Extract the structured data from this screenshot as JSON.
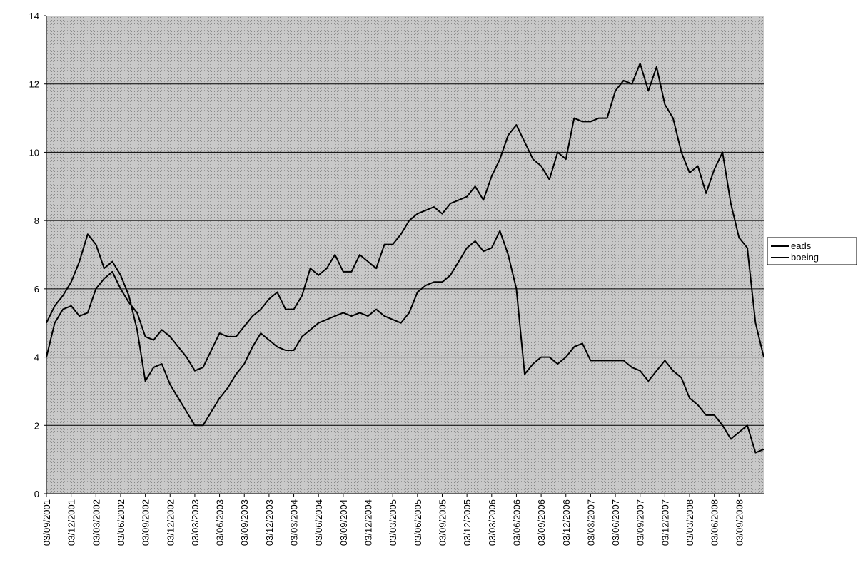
{
  "chart_data": {
    "type": "line",
    "categories": [
      "03/09/2001",
      null,
      null,
      "03/12/2001",
      null,
      null,
      "03/03/2002",
      null,
      null,
      "03/06/2002",
      null,
      null,
      "03/09/2002",
      null,
      null,
      "03/12/2002",
      null,
      null,
      "03/03/2003",
      null,
      null,
      "03/06/2003",
      null,
      null,
      "03/09/2003",
      null,
      null,
      "03/12/2003",
      null,
      null,
      "03/03/2004",
      null,
      null,
      "03/06/2004",
      null,
      null,
      "03/09/2004",
      null,
      null,
      "03/12/2004",
      null,
      null,
      "03/03/2005",
      null,
      null,
      "03/06/2005",
      null,
      null,
      "03/09/2005",
      null,
      null,
      "03/12/2005",
      null,
      null,
      "03/03/2006",
      null,
      null,
      "03/06/2006",
      null,
      null,
      "03/09/2006",
      null,
      null,
      "03/12/2006",
      null,
      null,
      "03/03/2007",
      null,
      null,
      "03/06/2007",
      null,
      null,
      "03/09/2007",
      null,
      null,
      "03/12/2007",
      null,
      null,
      "03/03/2008",
      null,
      null,
      "03/06/2008",
      null,
      null,
      "03/09/2008",
      null,
      null,
      null
    ],
    "series": [
      {
        "name": "eads",
        "color": "#000000",
        "values": [
          5.0,
          5.5,
          5.8,
          6.2,
          6.8,
          7.6,
          7.3,
          6.6,
          6.8,
          6.4,
          5.8,
          4.8,
          3.3,
          3.7,
          3.8,
          3.2,
          2.8,
          2.4,
          2.0,
          2.0,
          2.4,
          2.8,
          3.1,
          3.5,
          3.8,
          4.3,
          4.7,
          4.5,
          4.3,
          4.2,
          4.2,
          4.6,
          4.8,
          5.0,
          5.1,
          5.2,
          5.3,
          5.2,
          5.3,
          5.2,
          5.4,
          5.2,
          5.1,
          5.0,
          5.3,
          5.9,
          6.1,
          6.2,
          6.2,
          6.4,
          6.8,
          7.2,
          7.4,
          7.1,
          7.2,
          7.7,
          7.0,
          6.0,
          3.5,
          3.8,
          4.0,
          4.0,
          3.8,
          4.0,
          4.3,
          4.4,
          3.9,
          3.9,
          3.9,
          3.9,
          3.9,
          3.7,
          3.6,
          3.3,
          3.6,
          3.9,
          3.6,
          3.4,
          2.8,
          2.6,
          2.3,
          2.3,
          2.0,
          1.6,
          1.8,
          2.0,
          1.2,
          1.3
        ]
      },
      {
        "name": "boeing",
        "color": "#000000",
        "values": [
          4.0,
          5.0,
          5.4,
          5.5,
          5.2,
          5.3,
          6.0,
          6.3,
          6.5,
          6.0,
          5.6,
          5.3,
          4.6,
          4.5,
          4.8,
          4.6,
          4.3,
          4.0,
          3.6,
          3.7,
          4.2,
          4.7,
          4.6,
          4.6,
          4.9,
          5.2,
          5.4,
          5.7,
          5.9,
          5.4,
          5.4,
          5.8,
          6.6,
          6.4,
          6.6,
          7.0,
          6.5,
          6.5,
          7.0,
          6.8,
          6.6,
          7.3,
          7.3,
          7.6,
          8.0,
          8.2,
          8.3,
          8.4,
          8.2,
          8.5,
          8.6,
          8.7,
          9.0,
          8.6,
          9.3,
          9.8,
          10.5,
          10.8,
          10.3,
          9.8,
          9.6,
          9.2,
          10.0,
          9.8,
          11.0,
          10.9,
          10.9,
          11.0,
          11.0,
          11.8,
          12.1,
          12.0,
          12.6,
          11.8,
          12.5,
          11.4,
          11.0,
          10.0,
          9.4,
          9.6,
          8.8,
          9.5,
          10.0,
          8.5,
          7.5,
          7.2,
          5.0,
          4.0
        ]
      }
    ],
    "ylim": [
      0,
      14
    ],
    "yticks": [
      0,
      2,
      4,
      6,
      8,
      10,
      12,
      14
    ],
    "grid": true,
    "legend": "right"
  }
}
